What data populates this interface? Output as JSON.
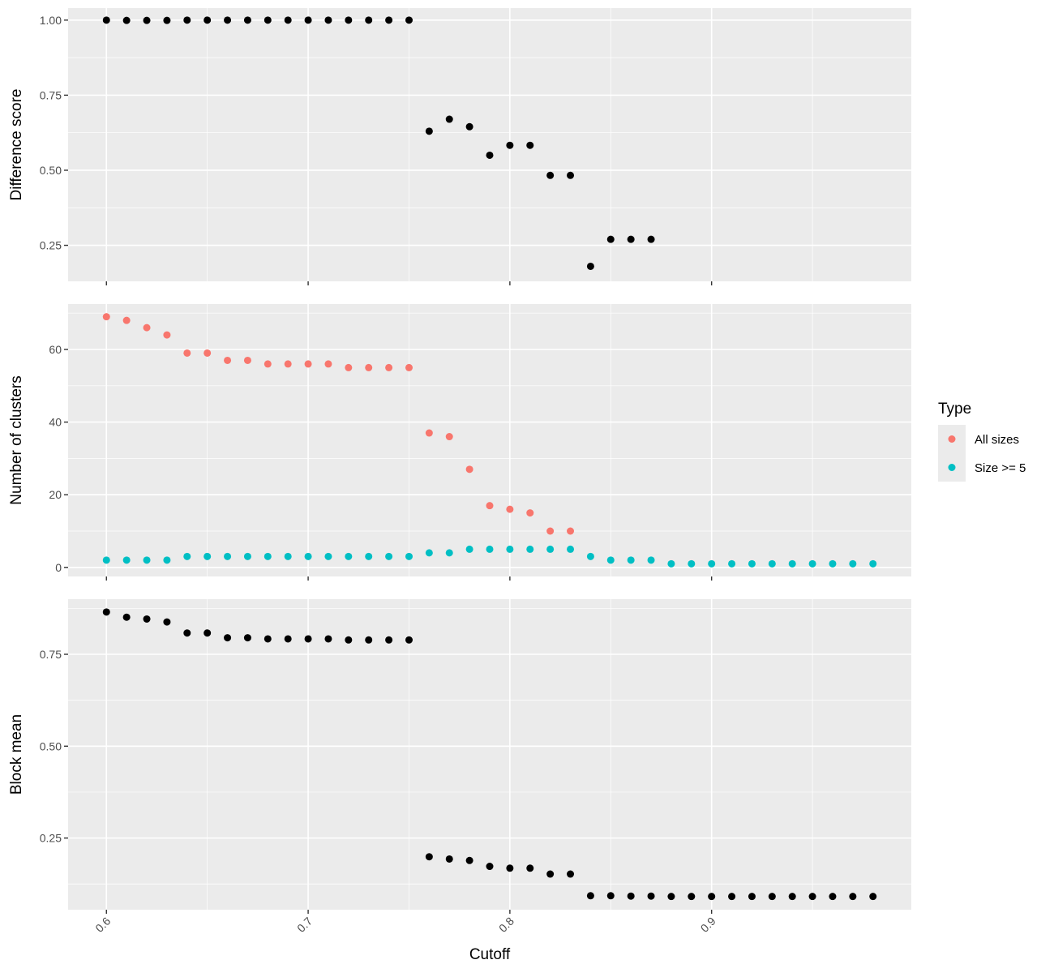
{
  "chart_data": [
    {
      "type": "scatter",
      "ylabel": "Difference score",
      "ylim": [
        0.13,
        1.04
      ],
      "yticks": [
        0.25,
        0.5,
        0.75,
        1.0
      ],
      "ytick_labels": [
        "0.25",
        "0.50",
        "0.75",
        "1.00"
      ],
      "series": [
        {
          "color": "#000000",
          "x": [
            0.6,
            0.61,
            0.62,
            0.63,
            0.64,
            0.65,
            0.66,
            0.67,
            0.68,
            0.69,
            0.7,
            0.71,
            0.72,
            0.73,
            0.74,
            0.75,
            0.76,
            0.77,
            0.78,
            0.79,
            0.8,
            0.81,
            0.82,
            0.83,
            0.84,
            0.85,
            0.86,
            0.87
          ],
          "y": [
            1.0,
            0.999,
            0.999,
            0.999,
            1.0,
            1.0,
            1.0,
            1.0,
            1.0,
            1.0,
            1.0,
            1.0,
            1.0,
            1.0,
            1.0,
            1.0,
            0.63,
            0.67,
            0.645,
            0.55,
            0.583,
            0.583,
            0.483,
            0.483,
            0.18,
            0.27,
            0.27,
            0.27
          ]
        }
      ]
    },
    {
      "type": "scatter",
      "ylabel": "Number of clusters",
      "ylim": [
        -2.5,
        72.5
      ],
      "yticks": [
        0,
        20,
        40,
        60
      ],
      "ytick_labels": [
        "0",
        "20",
        "40",
        "60"
      ],
      "series": [
        {
          "name": "All sizes",
          "color": "#F8766D",
          "x": [
            0.6,
            0.61,
            0.62,
            0.63,
            0.64,
            0.65,
            0.66,
            0.67,
            0.68,
            0.69,
            0.7,
            0.71,
            0.72,
            0.73,
            0.74,
            0.75,
            0.76,
            0.77,
            0.78,
            0.79,
            0.8,
            0.81,
            0.82,
            0.83
          ],
          "y": [
            69,
            68,
            66,
            64,
            59,
            59,
            57,
            57,
            56,
            56,
            56,
            56,
            55,
            55,
            55,
            55,
            37,
            36,
            27,
            17,
            16,
            15,
            10,
            10
          ]
        },
        {
          "name": "Size >= 5",
          "color": "#00BFC4",
          "x": [
            0.6,
            0.61,
            0.62,
            0.63,
            0.64,
            0.65,
            0.66,
            0.67,
            0.68,
            0.69,
            0.7,
            0.71,
            0.72,
            0.73,
            0.74,
            0.75,
            0.76,
            0.77,
            0.78,
            0.79,
            0.8,
            0.81,
            0.82,
            0.83,
            0.84,
            0.85,
            0.86,
            0.87,
            0.88,
            0.89,
            0.9,
            0.91,
            0.92,
            0.93,
            0.94,
            0.95,
            0.96,
            0.97,
            0.98
          ],
          "y": [
            2,
            2,
            2,
            2,
            3,
            3,
            3,
            3,
            3,
            3,
            3,
            3,
            3,
            3,
            3,
            3,
            4,
            4,
            5,
            5,
            5,
            5,
            5,
            5,
            3,
            2,
            2,
            2,
            1,
            1,
            1,
            1,
            1,
            1,
            1,
            1,
            1,
            1,
            1
          ]
        }
      ]
    },
    {
      "type": "scatter",
      "ylabel": "Block mean",
      "xlabel": "Cutoff",
      "ylim": [
        0.055,
        0.9
      ],
      "yticks": [
        0.25,
        0.5,
        0.75
      ],
      "ytick_labels": [
        "0.25",
        "0.50",
        "0.75"
      ],
      "series": [
        {
          "color": "#000000",
          "x": [
            0.6,
            0.61,
            0.62,
            0.63,
            0.64,
            0.65,
            0.66,
            0.67,
            0.68,
            0.69,
            0.7,
            0.71,
            0.72,
            0.73,
            0.74,
            0.75,
            0.76,
            0.77,
            0.78,
            0.79,
            0.8,
            0.81,
            0.82,
            0.83,
            0.84,
            0.85,
            0.86,
            0.87,
            0.88,
            0.89,
            0.9,
            0.91,
            0.92,
            0.93,
            0.94,
            0.95,
            0.96,
            0.97,
            0.98
          ],
          "y": [
            0.865,
            0.851,
            0.846,
            0.838,
            0.808,
            0.808,
            0.795,
            0.795,
            0.792,
            0.792,
            0.792,
            0.792,
            0.789,
            0.789,
            0.789,
            0.789,
            0.199,
            0.193,
            0.189,
            0.173,
            0.168,
            0.168,
            0.152,
            0.152,
            0.093,
            0.093,
            0.092,
            0.092,
            0.091,
            0.091,
            0.091,
            0.091,
            0.091,
            0.091,
            0.091,
            0.091,
            0.091,
            0.091,
            0.091
          ]
        }
      ]
    }
  ],
  "x_axis": {
    "label": "Cutoff",
    "xlim": [
      0.581,
      0.999
    ],
    "ticks": [
      0.6,
      0.7,
      0.8,
      0.9
    ],
    "tick_labels": [
      "0.6",
      "0.7",
      "0.8",
      "0.9"
    ]
  },
  "legend": {
    "title": "Type",
    "placement": "right",
    "entries": [
      {
        "label": "All sizes",
        "color": "#F8766D"
      },
      {
        "label": "Size >= 5",
        "color": "#00BFC4"
      }
    ]
  },
  "colors": {
    "panel_background": "#EBEBEB",
    "grid_major": "#FFFFFF",
    "point_default": "#000000"
  }
}
